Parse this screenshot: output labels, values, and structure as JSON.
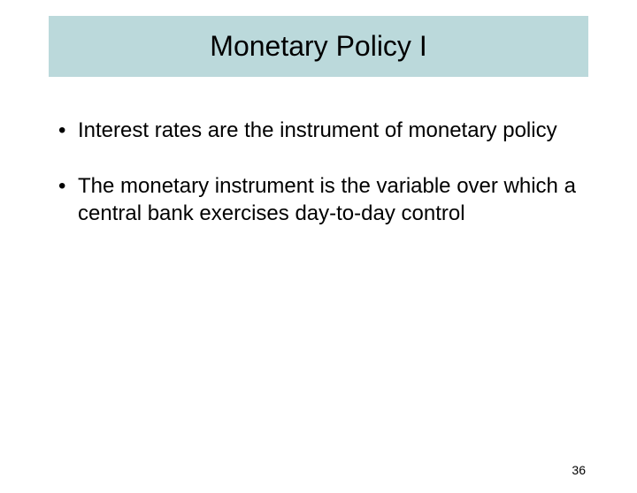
{
  "slide": {
    "title": "Monetary Policy I",
    "bullets": [
      "Interest rates are the instrument of monetary policy",
      "The monetary instrument is the variable over which a central bank exercises day-to-day control"
    ],
    "page_number": "36",
    "title_bg_color": "#bbd9db",
    "background_color": "#ffffff",
    "title_fontsize": 32,
    "body_fontsize": 24,
    "pagenum_fontsize": 14
  }
}
